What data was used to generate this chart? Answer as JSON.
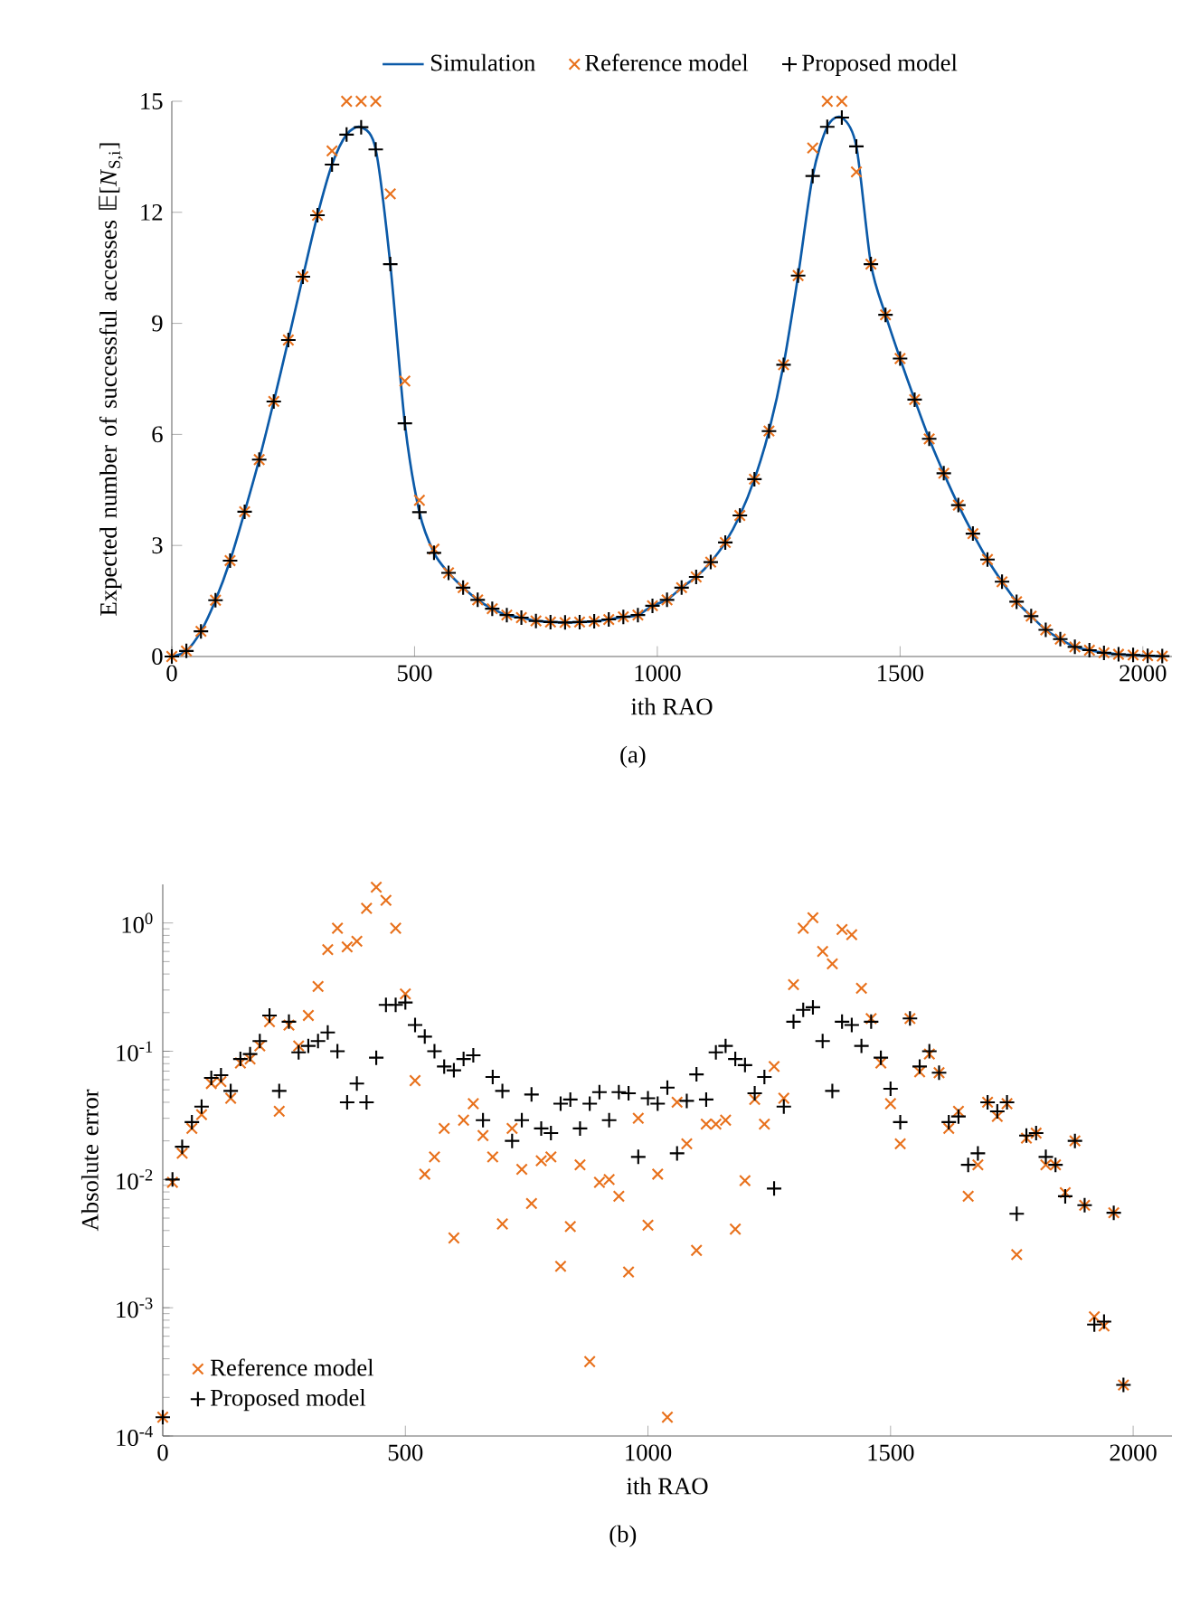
{
  "chart_data": [
    {
      "type": "line",
      "xlabel": "ith RAO",
      "ylabel": "Expected number of successful accesses 𝔼[*N*$_{S,i}$]",
      "x": [
        0,
        30,
        60,
        90,
        120,
        150,
        180,
        210,
        240,
        270,
        300,
        330,
        360,
        390,
        420,
        450,
        480,
        510,
        540,
        570,
        600,
        630,
        660,
        690,
        720,
        750,
        780,
        810,
        840,
        870,
        900,
        930,
        960,
        990,
        1020,
        1050,
        1080,
        1110,
        1140,
        1170,
        1200,
        1230,
        1260,
        1290,
        1320,
        1350,
        1380,
        1410,
        1440,
        1470,
        1500,
        1530,
        1560,
        1590,
        1620,
        1650,
        1680,
        1710,
        1740,
        1770,
        1800,
        1830,
        1860,
        1890,
        1920,
        1950,
        1980,
        2010,
        2040
      ],
      "series": [
        {
          "name": "Simulation",
          "type": "line",
          "marker": "none",
          "color": "#0b5aa8",
          "values": [
            0,
            0.15,
            0.68,
            1.52,
            2.59,
            3.91,
            5.32,
            6.89,
            8.55,
            10.26,
            11.92,
            13.29,
            14.1,
            14.3,
            13.7,
            10.6,
            6.3,
            3.9,
            2.8,
            2.26,
            1.86,
            1.53,
            1.29,
            1.12,
            1.05,
            0.96,
            0.93,
            0.92,
            0.93,
            0.95,
            1.0,
            1.07,
            1.12,
            1.37,
            1.53,
            1.86,
            2.15,
            2.55,
            3.08,
            3.81,
            4.79,
            6.09,
            7.88,
            10.29,
            12.98,
            14.31,
            14.56,
            13.78,
            10.6,
            9.23,
            8.05,
            6.94,
            5.88,
            4.95,
            4.09,
            3.32,
            2.62,
            2.02,
            1.48,
            1.09,
            0.72,
            0.47,
            0.26,
            0.17,
            0.1,
            0.06,
            0.04,
            0.02,
            0.01
          ]
        },
        {
          "name": "Reference model",
          "type": "scatter",
          "marker": "cross",
          "color": "#e8711c",
          "values": [
            0,
            0.15,
            0.68,
            1.52,
            2.59,
            3.91,
            5.32,
            6.89,
            8.55,
            10.26,
            11.92,
            13.66,
            15.0,
            15.0,
            15.0,
            12.5,
            7.44,
            4.22,
            2.9,
            2.26,
            1.86,
            1.53,
            1.29,
            1.12,
            1.05,
            0.96,
            0.93,
            0.92,
            0.93,
            0.95,
            1.0,
            1.07,
            1.12,
            1.37,
            1.53,
            1.86,
            2.15,
            2.55,
            3.08,
            3.81,
            4.79,
            6.09,
            7.88,
            10.29,
            13.74,
            15.0,
            15.0,
            13.09,
            10.6,
            9.23,
            8.05,
            6.94,
            5.88,
            4.95,
            4.09,
            3.32,
            2.62,
            2.02,
            1.48,
            1.09,
            0.72,
            0.47,
            0.26,
            0.17,
            0.1,
            0.06,
            0.04,
            0.02,
            0.01
          ]
        },
        {
          "name": "Proposed model",
          "type": "scatter",
          "marker": "plus",
          "color": "#000000",
          "values": [
            0,
            0.15,
            0.68,
            1.52,
            2.59,
            3.91,
            5.32,
            6.89,
            8.55,
            10.26,
            11.92,
            13.29,
            14.1,
            14.3,
            13.7,
            10.6,
            6.3,
            3.9,
            2.8,
            2.26,
            1.86,
            1.53,
            1.29,
            1.12,
            1.05,
            0.96,
            0.93,
            0.92,
            0.93,
            0.95,
            1.0,
            1.07,
            1.12,
            1.37,
            1.53,
            1.86,
            2.15,
            2.55,
            3.08,
            3.81,
            4.79,
            6.09,
            7.88,
            10.29,
            12.98,
            14.31,
            14.56,
            13.78,
            10.6,
            9.23,
            8.05,
            6.94,
            5.88,
            4.95,
            4.09,
            3.32,
            2.62,
            2.02,
            1.48,
            1.09,
            0.72,
            0.47,
            0.26,
            0.17,
            0.1,
            0.06,
            0.04,
            0.02,
            0.01
          ]
        }
      ],
      "xlim": [
        0,
        2060
      ],
      "ylim": [
        0,
        15
      ],
      "xticks": [
        0,
        500,
        1000,
        1500,
        2000
      ],
      "yticks": [
        0,
        3,
        6,
        9,
        12,
        15
      ],
      "legend": "top",
      "annotations": [
        "(a)"
      ]
    },
    {
      "type": "scatter",
      "xlabel": "ith RAO",
      "ylabel": "Absolute error",
      "log": "y",
      "x": [
        0,
        20,
        40,
        60,
        80,
        100,
        120,
        140,
        160,
        180,
        200,
        220,
        240,
        260,
        280,
        300,
        320,
        340,
        360,
        380,
        400,
        420,
        440,
        460,
        480,
        500,
        520,
        540,
        560,
        580,
        600,
        620,
        640,
        660,
        680,
        700,
        720,
        740,
        760,
        780,
        800,
        820,
        840,
        860,
        880,
        900,
        920,
        940,
        960,
        980,
        1000,
        1020,
        1040,
        1060,
        1080,
        1100,
        1120,
        1140,
        1160,
        1180,
        1200,
        1220,
        1240,
        1260,
        1280,
        1300,
        1320,
        1340,
        1360,
        1380,
        1400,
        1420,
        1440,
        1460,
        1480,
        1500,
        1520,
        1540,
        1560,
        1580,
        1600,
        1620,
        1640,
        1660,
        1680,
        1700,
        1720,
        1740,
        1760,
        1780,
        1800,
        1820,
        1840,
        1860,
        1880,
        1900,
        1920,
        1940,
        1960,
        1980
      ],
      "series": [
        {
          "name": "Reference model",
          "marker": "cross",
          "color": "#e8711c",
          "values": [
            0.00014,
            0.0095,
            0.016,
            0.025,
            0.032,
            0.056,
            0.058,
            0.043,
            0.081,
            0.087,
            0.11,
            0.17,
            0.034,
            0.16,
            0.11,
            0.19,
            0.32,
            0.62,
            0.91,
            0.65,
            0.72,
            1.3,
            1.9,
            1.5,
            0.91,
            0.28,
            0.059,
            0.011,
            0.015,
            0.025,
            0.0035,
            0.029,
            0.039,
            0.022,
            0.015,
            0.0045,
            0.025,
            0.012,
            0.0065,
            0.014,
            0.015,
            0.0021,
            0.0043,
            0.013,
            0.00038,
            0.0095,
            0.01,
            0.0074,
            0.0019,
            0.03,
            0.0044,
            0.011,
            0.00014,
            0.04,
            0.019,
            0.0028,
            0.027,
            0.027,
            0.029,
            0.0041,
            0.0098,
            0.042,
            0.027,
            0.076,
            0.043,
            0.33,
            0.91,
            1.1,
            0.6,
            0.48,
            0.89,
            0.81,
            0.31,
            0.18,
            0.081,
            0.039,
            0.019,
            0.18,
            0.069,
            0.095,
            0.068,
            0.025,
            0.034,
            0.0074,
            0.013,
            0.04,
            0.031,
            0.039,
            0.0026,
            0.021,
            0.023,
            0.013,
            0.013,
            0.0079,
            0.02,
            0.0063,
            0.00085,
            0.00072,
            0.0055,
            0.00025
          ]
        },
        {
          "name": "Proposed model",
          "marker": "plus",
          "color": "#000000",
          "values": [
            0.00014,
            0.01,
            0.018,
            0.028,
            0.037,
            0.062,
            0.065,
            0.049,
            0.087,
            0.095,
            0.12,
            0.19,
            0.049,
            0.17,
            0.098,
            0.11,
            0.12,
            0.14,
            0.1,
            0.04,
            0.056,
            0.04,
            0.089,
            0.23,
            0.23,
            0.24,
            0.16,
            0.13,
            0.1,
            0.076,
            0.071,
            0.087,
            0.093,
            0.029,
            0.063,
            0.049,
            0.02,
            0.029,
            0.046,
            0.025,
            0.023,
            0.039,
            0.042,
            0.025,
            0.039,
            0.048,
            0.029,
            0.048,
            0.047,
            0.015,
            0.043,
            0.039,
            0.052,
            0.016,
            0.041,
            0.066,
            0.042,
            0.098,
            0.11,
            0.087,
            0.078,
            0.047,
            0.063,
            0.0085,
            0.037,
            0.17,
            0.21,
            0.22,
            0.12,
            0.049,
            0.17,
            0.16,
            0.11,
            0.17,
            0.089,
            0.051,
            0.028,
            0.18,
            0.076,
            0.1,
            0.068,
            0.028,
            0.031,
            0.013,
            0.016,
            0.04,
            0.034,
            0.04,
            0.0054,
            0.022,
            0.023,
            0.015,
            0.013,
            0.0074,
            0.02,
            0.0063,
            0.00074,
            0.00078,
            0.0055,
            0.00025
          ]
        }
      ],
      "xlim": [
        0,
        2080
      ],
      "ylim": [
        0.0001,
        2
      ],
      "xticks": [
        0,
        500,
        1000,
        1500,
        2000
      ],
      "yticks": [
        {
          "value": 0.0001,
          "label": "10$^{-4}$"
        },
        {
          "value": 0.001,
          "label": "10$^{-3}$"
        },
        {
          "value": 0.01,
          "label": "10$^{-2}$"
        },
        {
          "value": 0.1,
          "label": "10$^{-1}$"
        },
        {
          "value": 1,
          "label": "10$^{0}$"
        }
      ],
      "legend": "bottom left",
      "annotations": [
        "(b)"
      ]
    }
  ]
}
